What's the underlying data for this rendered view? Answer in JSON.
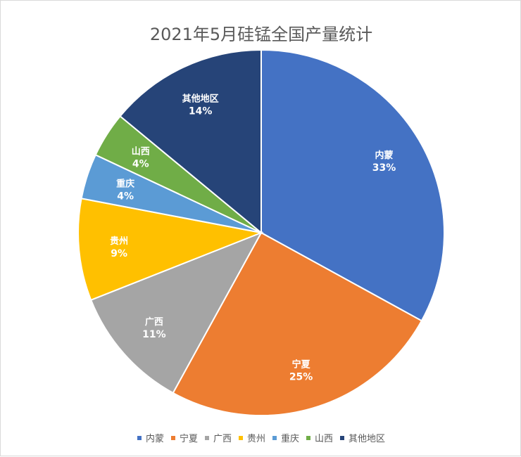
{
  "chart_data": {
    "type": "pie",
    "title": "2021年5月硅锰全国产量统计",
    "categories": [
      "内蒙",
      "宁夏",
      "广西",
      "贵州",
      "重庆",
      "山西",
      "其他地区"
    ],
    "values": [
      33,
      25,
      11,
      9,
      4,
      4,
      14
    ],
    "value_labels": [
      "33%",
      "25%",
      "11%",
      "9%",
      "4%",
      "4%",
      "14%"
    ],
    "colors": [
      "#4472C4",
      "#ED7D31",
      "#A5A5A5",
      "#FFC000",
      "#5B9BD5",
      "#70AD47",
      "#264478"
    ],
    "legend_position": "bottom"
  }
}
